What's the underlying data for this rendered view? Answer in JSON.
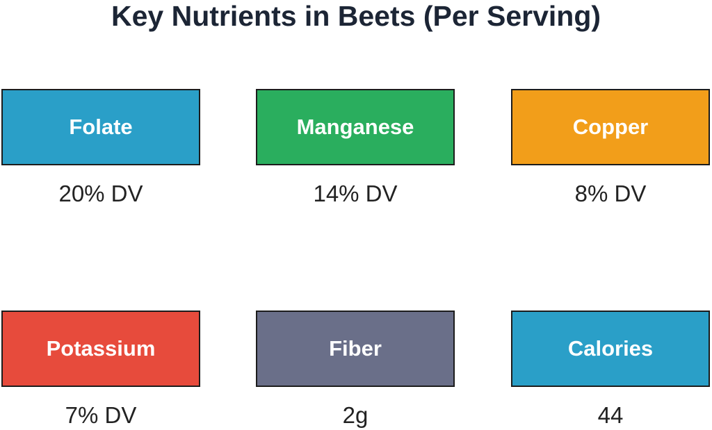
{
  "title": "Key Nutrients in Beets (Per Serving)",
  "nutrients": [
    {
      "label": "Folate",
      "value": "20% DV",
      "color": "#2a9fc8"
    },
    {
      "label": "Manganese",
      "value": "14% DV",
      "color": "#2aae5e"
    },
    {
      "label": "Copper",
      "value": "8% DV",
      "color": "#f29e1a"
    },
    {
      "label": "Potassium",
      "value": "7% DV",
      "color": "#e74b3c"
    },
    {
      "label": "Fiber",
      "value": "2g",
      "color": "#6a6f89"
    },
    {
      "label": "Calories",
      "value": "44",
      "color": "#2a9fc8"
    }
  ]
}
